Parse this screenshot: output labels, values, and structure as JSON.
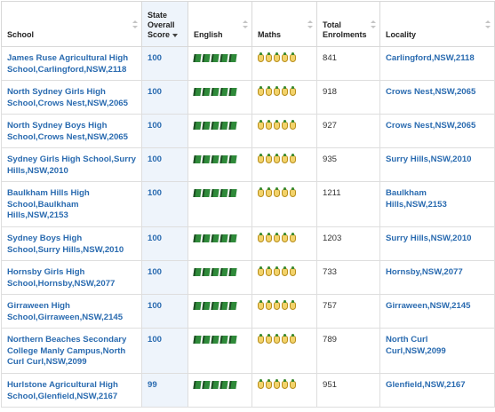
{
  "headers": {
    "school": "School",
    "score": "State Overall Score",
    "english": "English",
    "maths": "Maths",
    "enrolments": "Total Enrolments",
    "locality": "Locality"
  },
  "rating_icons": {
    "english": "book-icon",
    "maths": "pineapple-icon"
  },
  "colors": {
    "link": "#2a6bb0",
    "book": "#2f8a3a",
    "pineapple": "#f3d36b",
    "sorted_column_bg": "#eef4fb"
  },
  "rows": [
    {
      "school": "James Ruse Agricultural High School,Carlingford,NSW,2118",
      "score": "100",
      "english": 5,
      "maths": 5,
      "enrolments": "841",
      "locality": "Carlingford,NSW,2118"
    },
    {
      "school": "North Sydney Girls High School,Crows Nest,NSW,2065",
      "score": "100",
      "english": 5,
      "maths": 5,
      "enrolments": "918",
      "locality": "Crows Nest,NSW,2065"
    },
    {
      "school": "North Sydney Boys High School,Crows Nest,NSW,2065",
      "score": "100",
      "english": 5,
      "maths": 5,
      "enrolments": "927",
      "locality": "Crows Nest,NSW,2065"
    },
    {
      "school": "Sydney Girls High School,Surry Hills,NSW,2010",
      "score": "100",
      "english": 5,
      "maths": 5,
      "enrolments": "935",
      "locality": "Surry Hills,NSW,2010"
    },
    {
      "school": "Baulkham Hills High School,Baulkham Hills,NSW,2153",
      "score": "100",
      "english": 5,
      "maths": 5,
      "enrolments": "1211",
      "locality": "Baulkham Hills,NSW,2153"
    },
    {
      "school": "Sydney Boys High School,Surry Hills,NSW,2010",
      "score": "100",
      "english": 5,
      "maths": 5,
      "enrolments": "1203",
      "locality": "Surry Hills,NSW,2010"
    },
    {
      "school": "Hornsby Girls High School,Hornsby,NSW,2077",
      "score": "100",
      "english": 5,
      "maths": 5,
      "enrolments": "733",
      "locality": "Hornsby,NSW,2077"
    },
    {
      "school": "Girraween High School,Girraween,NSW,2145",
      "score": "100",
      "english": 5,
      "maths": 5,
      "enrolments": "757",
      "locality": "Girraween,NSW,2145"
    },
    {
      "school": "Northern Beaches Secondary College Manly Campus,North Curl Curl,NSW,2099",
      "score": "100",
      "english": 5,
      "maths": 5,
      "enrolments": "789",
      "locality": "North Curl Curl,NSW,2099"
    },
    {
      "school": "Hurlstone Agricultural High School,Glenfield,NSW,2167",
      "score": "99",
      "english": 5,
      "maths": 5,
      "enrolments": "951",
      "locality": "Glenfield,NSW,2167"
    }
  ]
}
